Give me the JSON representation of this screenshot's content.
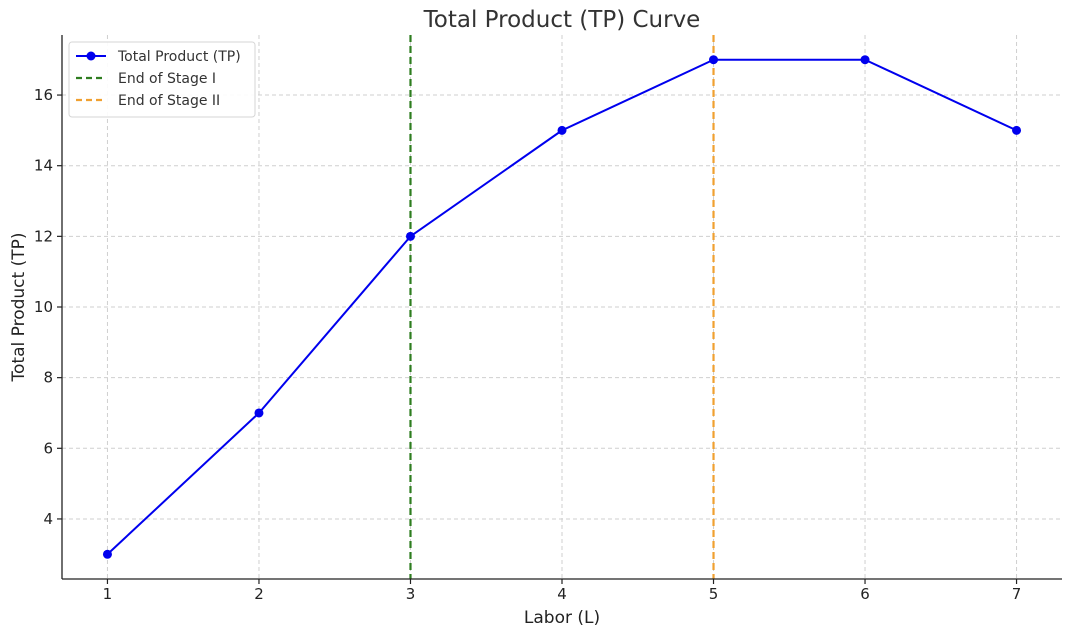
{
  "chart_data": {
    "type": "line",
    "title": "Total Product (TP) Curve",
    "xlabel": "Labor (L)",
    "ylabel": "Total Product (TP)",
    "xlim": [
      0.7,
      7.3
    ],
    "ylim": [
      2.3,
      17.7
    ],
    "x_ticks": [
      1,
      2,
      3,
      4,
      5,
      6,
      7
    ],
    "y_ticks": [
      4,
      6,
      8,
      10,
      12,
      14,
      16
    ],
    "grid": true,
    "legend_position": "top-left",
    "series": [
      {
        "name": "Total Product (TP)",
        "color": "#0000ee",
        "marker": "circle",
        "x": [
          1,
          2,
          3,
          4,
          5,
          6,
          7
        ],
        "y": [
          3,
          7,
          12,
          15,
          17,
          17,
          15
        ]
      }
    ],
    "vlines": [
      {
        "name": "End of Stage I",
        "x": 3,
        "color": "#2e7d1f",
        "style": "dashed"
      },
      {
        "name": "End of Stage II",
        "x": 5,
        "color": "#f0a030",
        "style": "dashed"
      }
    ]
  }
}
